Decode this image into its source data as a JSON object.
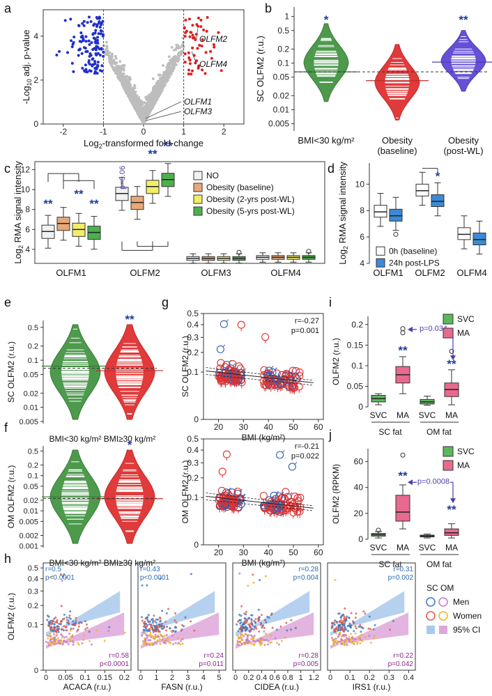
{
  "panels": {
    "a": "a",
    "b": "b",
    "c": "c",
    "d": "d",
    "e": "e",
    "f": "f",
    "g": "g",
    "h": "h",
    "i": "i",
    "j": "j"
  },
  "colors": {
    "green": "#4d9a4d",
    "green_light": "#d3ecd3",
    "red": "#e03a3a",
    "red_light": "#ffd6d6",
    "blue": "#6650d8",
    "blue_light": "#d9d2ff",
    "grey": "#bdbdbd",
    "navy": "#1f3c9b",
    "svc_green": "#5cb85c",
    "ma_pink": "#e86a8e",
    "men_blue": "#3a78c2",
    "women_red": "#e3564a",
    "ci_blue": "#a9c9ec",
    "ci_pink": "#dea7d9"
  },
  "chart_data": [
    {
      "id": "a",
      "type": "scatter",
      "title": "",
      "xlabel": "Log2-transformed fold-change",
      "ylabel": "-Log10 adj. p-value",
      "xlim": [
        -2.5,
        2.5
      ],
      "ylim": [
        0,
        5.2
      ],
      "xticks": [
        "-2",
        "-1",
        "0",
        "1",
        "2"
      ],
      "yticks": [
        "0",
        "2",
        "4"
      ],
      "thresholds": {
        "x": [
          -1,
          1
        ]
      },
      "annotations": [
        "OLFM2",
        "OLFM4",
        "OLFM1",
        "OLFM3"
      ]
    },
    {
      "id": "b",
      "type": "violin",
      "ylabel": "SC OLFM2 (r.u.)",
      "yticks": [
        "0.005",
        "0.01",
        "0.02",
        "0.05",
        "0.1",
        "0.2",
        "0.5",
        "1"
      ],
      "categories": [
        "BMI<30 kg/m²",
        "Obesity (baseline)",
        "Obesity (post-WL)"
      ],
      "cat_lines": [
        [
          "BMI<30 kg/m²"
        ],
        [
          "Obesity",
          "(baseline)"
        ],
        [
          "Obesity",
          "(post-WL)"
        ]
      ],
      "medians": [
        0.065,
        0.042,
        0.105
      ],
      "significance": [
        "*",
        "",
        "**"
      ],
      "reference_line": 0.065
    },
    {
      "id": "c",
      "type": "boxplot",
      "ylabel": "Log2 RMA signal intensity",
      "yticks": [
        "4",
        "6",
        "8",
        "10",
        "12"
      ],
      "categories": [
        "OLFM1",
        "OLFM2",
        "OLFM3",
        "OLFM4"
      ],
      "series": [
        {
          "name": "NO",
          "medians": [
            5.8,
            9.6,
            3.1,
            3.2
          ]
        },
        {
          "name": "Obesity (baseline)",
          "medians": [
            6.6,
            8.7,
            3.1,
            3.2
          ]
        },
        {
          "name": "Obesity (2-yrs post-WL)",
          "medians": [
            6.0,
            10.3,
            3.1,
            3.2
          ]
        },
        {
          "name": "Obesity (5-yrs post-WL)",
          "medians": [
            5.7,
            11.0,
            3.1,
            3.2
          ]
        }
      ],
      "significance": {
        "OLFM1": [
          "**",
          "",
          "**",
          "**"
        ],
        "OLFM2": [
          "p=0.06",
          "",
          "**",
          "**"
        ]
      }
    },
    {
      "id": "d",
      "type": "boxplot",
      "ylabel": "Log2 RMA signal intensity",
      "yticks": [
        "4",
        "6",
        "8",
        "10"
      ],
      "categories": [
        "OLFM1",
        "OLFM2",
        "OLFM4"
      ],
      "series": [
        {
          "name": "0h (baseline)",
          "medians": [
            7.9,
            9.5,
            6.2
          ]
        },
        {
          "name": "24h post-LPS",
          "medians": [
            7.6,
            8.7,
            5.8
          ]
        }
      ],
      "significance": [
        "",
        "*",
        ""
      ]
    },
    {
      "id": "e",
      "type": "violin",
      "ylabel": "SC OLFM2 (r.u.)",
      "yticks": [
        "0.005",
        "0.01",
        "0.02",
        "0.05",
        "0.1",
        "0.2",
        "0.5"
      ],
      "categories": [
        "BMI<30 kg/m²",
        "BMI≥30 kg/m²"
      ],
      "medians": [
        0.075,
        0.06
      ],
      "significance": [
        "",
        "**"
      ]
    },
    {
      "id": "f",
      "type": "violin",
      "ylabel": "OM OLFM2 (r.u.)",
      "yticks": [
        "0.001",
        "0.002",
        "0.005",
        "0.01",
        "0.02",
        "0.05",
        "0.1",
        "0.2",
        "0.5"
      ],
      "categories": [
        "BMI<30 kg/m²",
        "BMI≥30 kg/m²"
      ],
      "medians": [
        0.025,
        0.022
      ],
      "significance": [
        "",
        "*"
      ]
    },
    {
      "id": "g1",
      "type": "scatter",
      "ylabel": "SC OLFM2 (r.u.)",
      "xlabel": "BMI (kg/m²)",
      "xticks": [
        "20",
        "30",
        "40",
        "50",
        "60"
      ],
      "yticks": [
        "0",
        "0.1",
        "0.2",
        "0.3",
        "0.4",
        "0.5"
      ],
      "stats": [
        "r=-0.27",
        "p=0.001"
      ]
    },
    {
      "id": "g2",
      "type": "scatter",
      "ylabel": "OM OLFM2 (r.u.)",
      "xlabel": "BMI (kg/m²)",
      "xticks": [
        "20",
        "30",
        "40",
        "50",
        "60"
      ],
      "yticks": [
        "0",
        "0.1",
        "0.2",
        "0.3",
        "0.4",
        "0.5"
      ],
      "stats": [
        "r=-0.21",
        "p=0.022"
      ]
    },
    {
      "id": "i",
      "type": "boxplot",
      "ylabel": "OLFM2 (r.u.)",
      "yticks": [
        "0",
        "0.05",
        "0.1",
        "0.15",
        "0.2"
      ],
      "categories": [
        "SVC",
        "MA",
        "SVC",
        "MA"
      ],
      "groups": [
        "SC fat",
        "OM fat"
      ],
      "medians": [
        0.02,
        0.078,
        0.012,
        0.042
      ],
      "legend": [
        "SVC",
        "MA"
      ],
      "comparison": "p=0.034",
      "significance": [
        "",
        "**",
        "",
        "**"
      ]
    },
    {
      "id": "j",
      "type": "boxplot",
      "ylabel": "OLFM2 (RPKM)",
      "yticks": [
        "0",
        "20",
        "40",
        "60"
      ],
      "categories": [
        "SVC",
        "MA",
        "SVC",
        "MA"
      ],
      "groups": [
        "SC fat",
        "OM fat"
      ],
      "medians": [
        3.5,
        21,
        2.5,
        5
      ],
      "legend": [
        "SVC",
        "MA"
      ],
      "comparison": "p=0.0008",
      "significance": [
        "",
        "**",
        "",
        "**"
      ]
    },
    {
      "id": "h",
      "type": "scatter",
      "ylabel": "OLFM2 (r.u.)",
      "yticks": [
        "0",
        "0.1",
        "0.2",
        "0.3",
        "0.4",
        "0.5"
      ],
      "subplots": [
        {
          "xlabel": "ACACA (r.u.)",
          "xticks": [
            "0",
            "0.05",
            "0.1",
            "0.15",
            "0.2"
          ],
          "sc": [
            "r=0.5",
            "p<0.0001"
          ],
          "om": [
            "r=0.58",
            "p<0.0001"
          ]
        },
        {
          "xlabel": "FASN (r.u.)",
          "xticks": [
            "0",
            "1",
            "2",
            "3",
            "4",
            "5"
          ],
          "sc": [
            "r=0.43",
            "p<0.0001"
          ],
          "om": [
            "r=0.24",
            "p=0.011"
          ]
        },
        {
          "xlabel": "CIDEA (r.u.)",
          "xticks": [
            "0",
            "0.2",
            "0.4",
            "0.6",
            "0.8",
            "1",
            "1.2"
          ],
          "sc": [
            "r=0.28",
            "p=0.004"
          ],
          "om": [
            "r=0.28",
            "p=0.005"
          ]
        },
        {
          "xlabel": "IRS1 (r.u.)",
          "xticks": [
            "0",
            "0.1",
            "0.2",
            "0.3",
            "0.4"
          ],
          "sc": [
            "r=0.31",
            "p=0.002"
          ],
          "om": [
            "r=0.22",
            "p=0.042"
          ]
        }
      ],
      "legend_title": "SC OM",
      "legend": [
        "Men",
        "Women",
        "95% CI"
      ]
    }
  ]
}
